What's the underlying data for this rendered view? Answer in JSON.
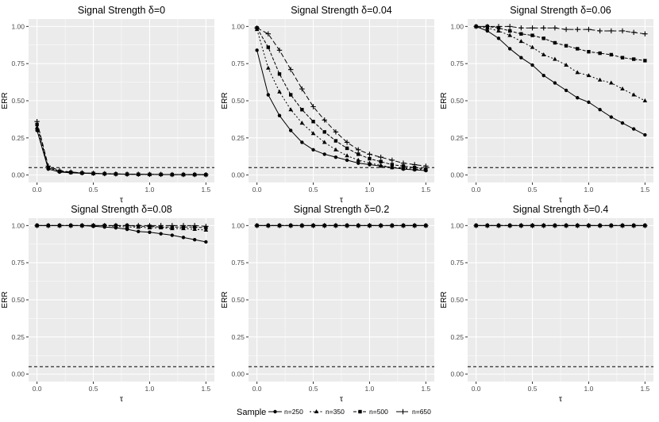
{
  "legend": {
    "title": "Sample",
    "entries": [
      "n=250",
      "n=350",
      "n=500",
      "n=650"
    ]
  },
  "colors": {
    "panel_bg": "#ebebeb",
    "grid": "#ffffff",
    "ink": "#000000",
    "tick_text": "#4d4d4d"
  },
  "chart_data": [
    {
      "type": "line",
      "title": "Signal Strength δ=0",
      "xlabel": "τ",
      "ylabel": "ERR",
      "xlim": [
        0,
        1.5
      ],
      "ylim": [
        0,
        1
      ],
      "xticks": [
        "0.0",
        "0.5",
        "1.0",
        "1.5"
      ],
      "yticks": [
        "0.00",
        "0.25",
        "0.50",
        "0.75",
        "1.00"
      ],
      "hline": 0.05,
      "x": [
        0,
        0.1,
        0.2,
        0.3,
        0.4,
        0.5,
        0.6,
        0.7,
        0.8,
        0.9,
        1.0,
        1.1,
        1.2,
        1.3,
        1.4,
        1.5
      ],
      "series": [
        {
          "name": "n=250",
          "values": [
            0.3,
            0.04,
            0.02,
            0.015,
            0.012,
            0.01,
            0.008,
            0.006,
            0.005,
            0.004,
            0.004,
            0.003,
            0.003,
            0.003,
            0.002,
            0.002
          ]
        },
        {
          "name": "n=350",
          "values": [
            0.32,
            0.05,
            0.025,
            0.018,
            0.014,
            0.011,
            0.009,
            0.007,
            0.006,
            0.005,
            0.004,
            0.004,
            0.003,
            0.003,
            0.003,
            0.002
          ]
        },
        {
          "name": "n=500",
          "values": [
            0.34,
            0.05,
            0.025,
            0.018,
            0.014,
            0.011,
            0.009,
            0.007,
            0.006,
            0.005,
            0.004,
            0.004,
            0.003,
            0.003,
            0.003,
            0.002
          ]
        },
        {
          "name": "n=650",
          "values": [
            0.36,
            0.06,
            0.03,
            0.02,
            0.015,
            0.012,
            0.009,
            0.007,
            0.006,
            0.005,
            0.004,
            0.004,
            0.003,
            0.003,
            0.003,
            0.002
          ]
        }
      ]
    },
    {
      "type": "line",
      "title": "Signal Strength δ=0.04",
      "xlabel": "τ",
      "ylabel": "ERR",
      "xlim": [
        0,
        1.5
      ],
      "ylim": [
        0,
        1
      ],
      "xticks": [
        "0.0",
        "0.5",
        "1.0",
        "1.5"
      ],
      "yticks": [
        "0.00",
        "0.25",
        "0.50",
        "0.75",
        "1.00"
      ],
      "hline": 0.05,
      "x": [
        0,
        0.1,
        0.2,
        0.3,
        0.4,
        0.5,
        0.6,
        0.7,
        0.8,
        0.9,
        1.0,
        1.1,
        1.2,
        1.3,
        1.4,
        1.5
      ],
      "series": [
        {
          "name": "n=250",
          "values": [
            0.84,
            0.54,
            0.4,
            0.3,
            0.22,
            0.17,
            0.14,
            0.12,
            0.1,
            0.08,
            0.07,
            0.06,
            0.05,
            0.04,
            0.035,
            0.03
          ]
        },
        {
          "name": "n=350",
          "values": [
            0.98,
            0.72,
            0.56,
            0.44,
            0.35,
            0.28,
            0.22,
            0.17,
            0.13,
            0.1,
            0.08,
            0.065,
            0.05,
            0.045,
            0.04,
            0.035
          ]
        },
        {
          "name": "n=500",
          "values": [
            0.99,
            0.86,
            0.68,
            0.54,
            0.44,
            0.36,
            0.29,
            0.23,
            0.18,
            0.14,
            0.11,
            0.09,
            0.07,
            0.06,
            0.05,
            0.04
          ]
        },
        {
          "name": "n=650",
          "values": [
            0.99,
            0.95,
            0.84,
            0.71,
            0.58,
            0.46,
            0.37,
            0.29,
            0.22,
            0.17,
            0.14,
            0.12,
            0.1,
            0.08,
            0.07,
            0.06
          ]
        }
      ]
    },
    {
      "type": "line",
      "title": "Signal Strength δ=0.06",
      "xlabel": "τ",
      "ylabel": "ERR",
      "xlim": [
        0,
        1.5
      ],
      "ylim": [
        0,
        1
      ],
      "xticks": [
        "0.0",
        "0.5",
        "1.0",
        "1.5"
      ],
      "yticks": [
        "0.00",
        "0.25",
        "0.50",
        "0.75",
        "1.00"
      ],
      "hline": 0.05,
      "x": [
        0,
        0.1,
        0.2,
        0.3,
        0.4,
        0.5,
        0.6,
        0.7,
        0.8,
        0.9,
        1.0,
        1.1,
        1.2,
        1.3,
        1.4,
        1.5
      ],
      "series": [
        {
          "name": "n=250",
          "values": [
            1.0,
            0.97,
            0.92,
            0.85,
            0.79,
            0.74,
            0.67,
            0.62,
            0.57,
            0.52,
            0.49,
            0.44,
            0.39,
            0.35,
            0.31,
            0.27
          ]
        },
        {
          "name": "n=350",
          "values": [
            1.0,
            0.99,
            0.97,
            0.94,
            0.9,
            0.86,
            0.81,
            0.78,
            0.74,
            0.69,
            0.67,
            0.64,
            0.62,
            0.58,
            0.54,
            0.5
          ]
        },
        {
          "name": "n=500",
          "values": [
            1.0,
            1.0,
            0.99,
            0.97,
            0.95,
            0.94,
            0.92,
            0.89,
            0.87,
            0.85,
            0.83,
            0.82,
            0.81,
            0.79,
            0.78,
            0.77
          ]
        },
        {
          "name": "n=650",
          "values": [
            1.0,
            1.0,
            1.0,
            1.0,
            0.99,
            0.99,
            0.99,
            0.99,
            0.98,
            0.98,
            0.98,
            0.97,
            0.97,
            0.97,
            0.96,
            0.95
          ]
        }
      ]
    },
    {
      "type": "line",
      "title": "Signal Strength δ=0.08",
      "xlabel": "τ",
      "ylabel": "ERR",
      "xlim": [
        0,
        1.5
      ],
      "ylim": [
        0,
        1
      ],
      "xticks": [
        "0.0",
        "0.5",
        "1.0",
        "1.5"
      ],
      "yticks": [
        "0.00",
        "0.25",
        "0.50",
        "0.75",
        "1.00"
      ],
      "hline": 0.05,
      "x": [
        0,
        0.1,
        0.2,
        0.3,
        0.4,
        0.5,
        0.6,
        0.7,
        0.8,
        0.9,
        1.0,
        1.1,
        1.2,
        1.3,
        1.4,
        1.5
      ],
      "series": [
        {
          "name": "n=250",
          "values": [
            1.0,
            1.0,
            1.0,
            1.0,
            1.0,
            0.995,
            0.99,
            0.985,
            0.975,
            0.96,
            0.955,
            0.945,
            0.935,
            0.92,
            0.905,
            0.89
          ]
        },
        {
          "name": "n=350",
          "values": [
            1.0,
            1.0,
            1.0,
            1.0,
            1.0,
            1.0,
            1.0,
            0.995,
            0.99,
            0.99,
            0.985,
            0.985,
            0.98,
            0.98,
            0.975,
            0.97
          ]
        },
        {
          "name": "n=500",
          "values": [
            1.0,
            1.0,
            1.0,
            1.0,
            1.0,
            1.0,
            1.0,
            1.0,
            1.0,
            0.995,
            0.995,
            0.99,
            0.99,
            0.99,
            0.99,
            0.985
          ]
        },
        {
          "name": "n=650",
          "values": [
            1.0,
            1.0,
            1.0,
            1.0,
            1.0,
            1.0,
            1.0,
            1.0,
            1.0,
            1.0,
            1.0,
            1.0,
            1.0,
            1.0,
            1.0,
            0.995
          ]
        }
      ]
    },
    {
      "type": "line",
      "title": "Signal Strength δ=0.2",
      "xlabel": "τ",
      "ylabel": "ERR",
      "xlim": [
        0,
        1.5
      ],
      "ylim": [
        0,
        1
      ],
      "xticks": [
        "0.0",
        "0.5",
        "1.0",
        "1.5"
      ],
      "yticks": [
        "0.00",
        "0.25",
        "0.50",
        "0.75",
        "1.00"
      ],
      "hline": 0.05,
      "x": [
        0,
        0.1,
        0.2,
        0.3,
        0.4,
        0.5,
        0.6,
        0.7,
        0.8,
        0.9,
        1.0,
        1.1,
        1.2,
        1.3,
        1.4,
        1.5
      ],
      "series": [
        {
          "name": "n=250",
          "values": [
            1,
            1,
            1,
            1,
            1,
            1,
            1,
            1,
            1,
            1,
            1,
            1,
            1,
            1,
            1,
            1
          ]
        },
        {
          "name": "n=350",
          "values": [
            1,
            1,
            1,
            1,
            1,
            1,
            1,
            1,
            1,
            1,
            1,
            1,
            1,
            1,
            1,
            1
          ]
        },
        {
          "name": "n=500",
          "values": [
            1,
            1,
            1,
            1,
            1,
            1,
            1,
            1,
            1,
            1,
            1,
            1,
            1,
            1,
            1,
            1
          ]
        },
        {
          "name": "n=650",
          "values": [
            1,
            1,
            1,
            1,
            1,
            1,
            1,
            1,
            1,
            1,
            1,
            1,
            1,
            1,
            1,
            1
          ]
        }
      ]
    },
    {
      "type": "line",
      "title": "Signal Strength δ=0.4",
      "xlabel": "τ",
      "ylabel": "ERR",
      "xlim": [
        0,
        1.5
      ],
      "ylim": [
        0,
        1
      ],
      "xticks": [
        "0.0",
        "0.5",
        "1.0",
        "1.5"
      ],
      "yticks": [
        "0.00",
        "0.25",
        "0.50",
        "0.75",
        "1.00"
      ],
      "hline": 0.05,
      "x": [
        0,
        0.1,
        0.2,
        0.3,
        0.4,
        0.5,
        0.6,
        0.7,
        0.8,
        0.9,
        1.0,
        1.1,
        1.2,
        1.3,
        1.4,
        1.5
      ],
      "series": [
        {
          "name": "n=250",
          "values": [
            1,
            1,
            1,
            1,
            1,
            1,
            1,
            1,
            1,
            1,
            1,
            1,
            1,
            1,
            1,
            1
          ]
        },
        {
          "name": "n=350",
          "values": [
            1,
            1,
            1,
            1,
            1,
            1,
            1,
            1,
            1,
            1,
            1,
            1,
            1,
            1,
            1,
            1
          ]
        },
        {
          "name": "n=500",
          "values": [
            1,
            1,
            1,
            1,
            1,
            1,
            1,
            1,
            1,
            1,
            1,
            1,
            1,
            1,
            1,
            1
          ]
        },
        {
          "name": "n=650",
          "values": [
            1,
            1,
            1,
            1,
            1,
            1,
            1,
            1,
            1,
            1,
            1,
            1,
            1,
            1,
            1,
            1
          ]
        }
      ]
    }
  ]
}
